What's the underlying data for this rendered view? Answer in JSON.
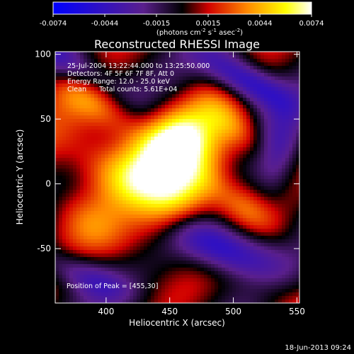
{
  "chart_data": {
    "type": "heatmap",
    "title": "Reconstructed RHESSI Image",
    "xlabel": "Heliocentric X (arcsec)",
    "ylabel": "Heliocentric Y (arcsec)",
    "xlim": [
      360,
      552
    ],
    "ylim": [
      -92,
      102
    ],
    "x_ticks": [
      400,
      450,
      500,
      550
    ],
    "y_ticks": [
      -50,
      0,
      50,
      100
    ],
    "colorbar": {
      "ticks": [
        "-0.0074",
        "-0.0044",
        "-0.0015",
        "0.0015",
        "0.0044",
        "0.0074"
      ],
      "unit_label": "(photons cm",
      "unit_sup1": "-2",
      "unit_mid": " s",
      "unit_sup2": "-1",
      "unit_mid2": " asec",
      "unit_sup3": "-2",
      "unit_end": ")",
      "range": [
        -0.0074,
        0.0074
      ],
      "palette": [
        "#0000ff",
        "#5a1f8c",
        "#000000",
        "#d00000",
        "#ff8800",
        "#ffff00",
        "#ffffff"
      ]
    },
    "annotations": [
      "25-Jul-2004 13:22:44.000 to 13:25:50.000",
      "Detectors: 4F 5F 6F 7F 8F, Att 0",
      "Energy Range: 12.0 - 25.0 keV",
      "Clean      Total counts: 5.61E+04"
    ],
    "peak_label": "Position of Peak = [455,30]",
    "peak": [
      455,
      30
    ],
    "grid": false
  },
  "footer": {
    "date": "18-Jun-2013 09:24"
  }
}
